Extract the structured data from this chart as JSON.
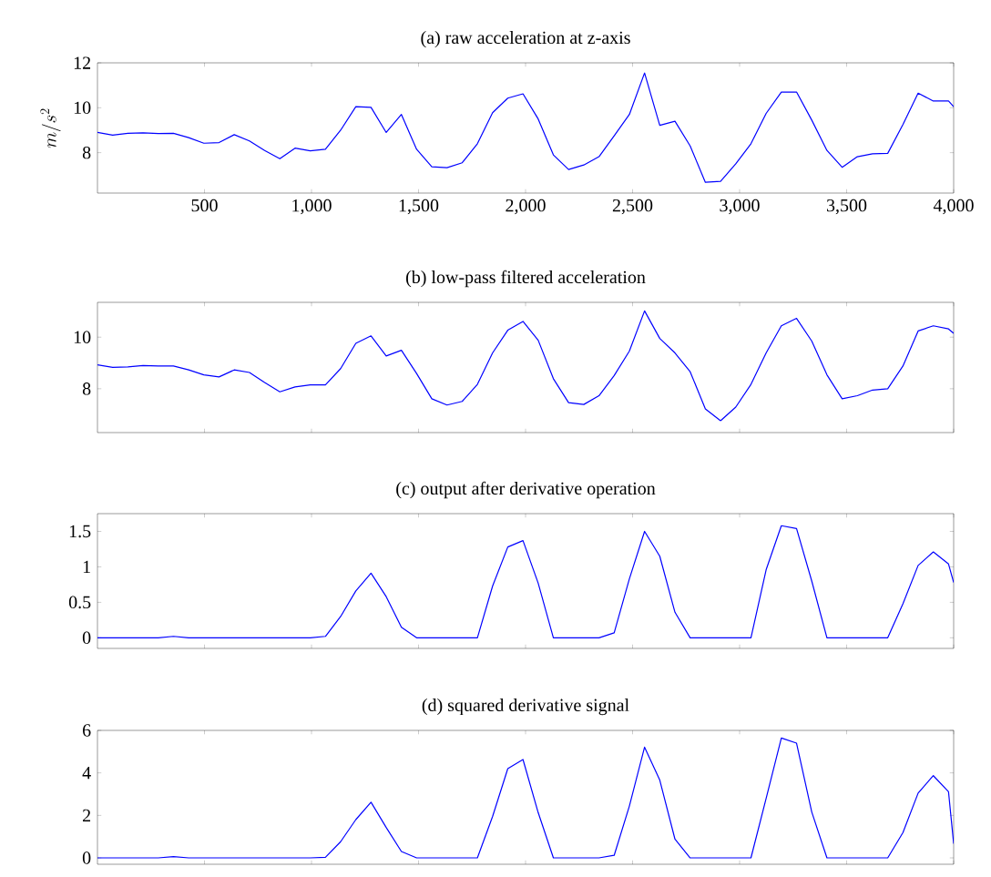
{
  "chart_data": [
    {
      "type": "line",
      "title": "(a) raw acceleration at z-axis",
      "ylabel": "m/s^2",
      "color": "#0000ff",
      "marker": "none",
      "line_style": "solid",
      "x": [
        0,
        71,
        142,
        213,
        284,
        355,
        426,
        497,
        568,
        639,
        710,
        781,
        852,
        923,
        994,
        1065,
        1136,
        1207,
        1278,
        1349,
        1420,
        1491,
        1562,
        1633,
        1704,
        1775,
        1846,
        1917,
        1988,
        2059,
        2130,
        2201,
        2272,
        2343,
        2414,
        2485,
        2556,
        2627,
        2698,
        2769,
        2840,
        2911,
        2982,
        3053,
        3124,
        3195,
        3266,
        3337,
        3408,
        3479,
        3550,
        3621,
        3692,
        3763,
        3834,
        3905,
        3976,
        4000
      ],
      "values": [
        8.9,
        8.78,
        8.86,
        8.88,
        8.85,
        8.86,
        8.67,
        8.42,
        8.45,
        8.8,
        8.52,
        8.1,
        7.73,
        8.2,
        8.08,
        8.15,
        9.0,
        10.05,
        10.02,
        8.9,
        9.7,
        8.15,
        7.37,
        7.33,
        7.55,
        8.4,
        9.78,
        10.43,
        10.62,
        9.5,
        7.9,
        7.25,
        7.45,
        7.82,
        8.75,
        9.7,
        11.55,
        9.22,
        9.4,
        8.3,
        6.68,
        6.72,
        7.5,
        8.4,
        9.75,
        10.7,
        10.7,
        9.45,
        8.1,
        7.35,
        7.82,
        7.95,
        7.97,
        9.25,
        10.65,
        10.3,
        10.3,
        10.05
      ],
      "xlim": [
        0,
        4000
      ],
      "ylim": [
        6.2,
        12
      ],
      "xticks": [
        500,
        {
          "value": 1000,
          "label": "1,000"
        },
        {
          "value": 1500,
          "label": "1,500"
        },
        {
          "value": 2000,
          "label": "2,000"
        },
        {
          "value": 2500,
          "label": "2,500"
        },
        {
          "value": 3000,
          "label": "3,000"
        },
        {
          "value": 3500,
          "label": "3,500"
        },
        {
          "value": 4000,
          "label": "4,000"
        }
      ],
      "yticks": [
        8,
        10,
        12
      ]
    },
    {
      "type": "line",
      "title": "(b) low-pass filtered acceleration",
      "color": "#0000ff",
      "marker": "none",
      "line_style": "solid",
      "tick_labels": "y",
      "x": [
        0,
        71,
        142,
        213,
        284,
        355,
        426,
        497,
        568,
        639,
        710,
        781,
        852,
        923,
        994,
        1065,
        1136,
        1207,
        1278,
        1349,
        1420,
        1491,
        1562,
        1633,
        1704,
        1775,
        1846,
        1917,
        1988,
        2059,
        2130,
        2201,
        2272,
        2343,
        2414,
        2485,
        2556,
        2627,
        2698,
        2769,
        2840,
        2911,
        2982,
        3053,
        3124,
        3195,
        3266,
        3337,
        3408,
        3479,
        3550,
        3621,
        3692,
        3763,
        3834,
        3905,
        3976,
        4000
      ],
      "values": [
        8.93,
        8.83,
        8.85,
        8.9,
        8.88,
        8.88,
        8.73,
        8.54,
        8.46,
        8.73,
        8.63,
        8.24,
        7.88,
        8.07,
        8.15,
        8.15,
        8.78,
        9.76,
        10.05,
        9.27,
        9.49,
        8.59,
        7.61,
        7.37,
        7.51,
        8.17,
        9.39,
        10.27,
        10.61,
        9.88,
        8.39,
        7.46,
        7.39,
        7.73,
        8.51,
        9.46,
        11.02,
        9.95,
        9.39,
        8.66,
        7.22,
        6.76,
        7.29,
        8.17,
        9.39,
        10.44,
        10.73,
        9.85,
        8.54,
        7.61,
        7.73,
        7.95,
        8.0,
        8.88,
        10.24,
        10.44,
        10.32,
        10.15
      ],
      "xlim": [
        0,
        4000
      ],
      "ylim": [
        6.3,
        11.35
      ],
      "xticks": [
        500,
        1000,
        1500,
        2000,
        2500,
        3000,
        3500,
        4000
      ],
      "yticks": [
        8,
        10
      ]
    },
    {
      "type": "line",
      "title": "(c) output after derivative operation",
      "color": "#0000ff",
      "marker": "none",
      "line_style": "solid",
      "tick_labels": "y",
      "x": [
        0,
        71,
        142,
        213,
        284,
        355,
        426,
        497,
        568,
        639,
        710,
        781,
        852,
        923,
        994,
        1065,
        1136,
        1207,
        1278,
        1349,
        1420,
        1491,
        1562,
        1633,
        1704,
        1775,
        1846,
        1917,
        1988,
        2059,
        2130,
        2201,
        2272,
        2343,
        2414,
        2485,
        2556,
        2627,
        2698,
        2769,
        2840,
        2911,
        2982,
        3053,
        3124,
        3195,
        3266,
        3337,
        3408,
        3479,
        3550,
        3621,
        3692,
        3763,
        3834,
        3905,
        3976,
        4000
      ],
      "values": [
        0,
        0,
        0,
        0,
        0,
        0.02,
        0,
        0,
        0,
        0,
        0,
        0,
        0,
        0,
        0,
        0.02,
        0.3,
        0.66,
        0.91,
        0.58,
        0.15,
        0,
        0,
        0,
        0,
        0,
        0.73,
        1.28,
        1.37,
        0.77,
        0,
        0,
        0,
        0,
        0.07,
        0.83,
        1.5,
        1.15,
        0.36,
        0,
        0,
        0,
        0,
        0,
        0.96,
        1.58,
        1.54,
        0.8,
        0,
        0,
        0,
        0,
        0,
        0.48,
        1.02,
        1.21,
        1.04,
        0.78
      ],
      "xlim": [
        0,
        4000
      ],
      "ylim": [
        -0.15,
        1.75
      ],
      "xticks": [
        500,
        1000,
        1500,
        2000,
        2500,
        3000,
        3500,
        4000
      ],
      "yticks": [
        0,
        0.5,
        1,
        1.5
      ]
    },
    {
      "type": "line",
      "title": "(d) squared derivative signal",
      "color": "#0000ff",
      "marker": "none",
      "line_style": "solid",
      "tick_labels": "y",
      "x": [
        0,
        71,
        142,
        213,
        284,
        355,
        426,
        497,
        568,
        639,
        710,
        781,
        852,
        923,
        994,
        1065,
        1136,
        1207,
        1278,
        1349,
        1420,
        1491,
        1562,
        1633,
        1704,
        1775,
        1846,
        1917,
        1988,
        2059,
        2130,
        2201,
        2272,
        2343,
        2414,
        2485,
        2556,
        2627,
        2698,
        2769,
        2840,
        2911,
        2982,
        3053,
        3124,
        3195,
        3266,
        3337,
        3408,
        3479,
        3550,
        3621,
        3692,
        3763,
        3834,
        3905,
        3976,
        4000
      ],
      "values": [
        0,
        0,
        0,
        0,
        0,
        0.06,
        0,
        0,
        0,
        0,
        0,
        0,
        0,
        0,
        0,
        0.03,
        0.76,
        1.8,
        2.62,
        1.43,
        0.3,
        0,
        0,
        0,
        0,
        0,
        1.95,
        4.2,
        4.63,
        2.13,
        0,
        0,
        0,
        0,
        0.12,
        2.44,
        5.21,
        3.66,
        0.88,
        0,
        0,
        0,
        0,
        0,
        2.8,
        5.64,
        5.4,
        2.16,
        0,
        0,
        0,
        0,
        0,
        1.19,
        3.05,
        3.87,
        3.11,
        0.67
      ],
      "xlim": [
        0,
        4000
      ],
      "ylim": [
        -0.3,
        6
      ],
      "xticks": [
        500,
        1000,
        1500,
        2000,
        2500,
        3000,
        3500,
        4000
      ],
      "yticks": [
        0,
        2,
        4,
        6
      ]
    }
  ]
}
